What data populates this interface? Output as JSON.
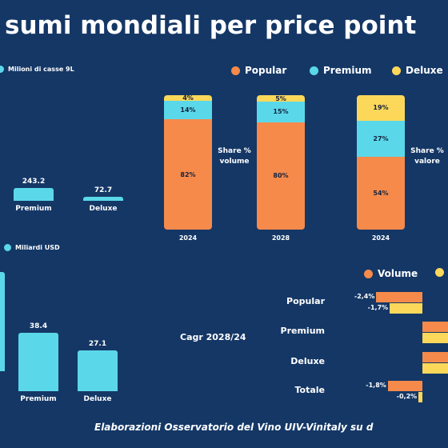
{
  "title": "sumi mondiali per price point",
  "footer": "Elaborazioni Osservatorio del Vino UIV-Vinitaly su d",
  "colors": {
    "background": "#143766",
    "popular": "#f58a4b",
    "premium": "#5ad8ea",
    "deluxe": "#fbd85a",
    "volume": "#f58a4b",
    "valore": "#fbd85a"
  },
  "chart_data": [
    {
      "type": "bar",
      "ylabel": "Milioni di casse 9L",
      "categories": [
        "Premium",
        "Deluxe"
      ],
      "values": [
        243.2,
        72.7
      ],
      "value_labels": [
        "243.2",
        "72.7"
      ]
    },
    {
      "type": "bar",
      "ylabel": "Miliardi USD",
      "categories": [
        "Premium",
        "Deluxe"
      ],
      "values": [
        38.4,
        27.1
      ],
      "value_labels": [
        "38.4",
        "27.1"
      ]
    },
    {
      "type": "bar",
      "stacked": true,
      "percent": true,
      "legend": [
        "Popular",
        "Premium",
        "Deluxe"
      ],
      "groups": [
        {
          "year": "2024",
          "label": "Share % volume",
          "label_lines": [
            "Share %",
            "volume"
          ],
          "segments": [
            82,
            14,
            4
          ],
          "seg_labels": [
            "82%",
            "14%",
            "4%"
          ]
        },
        {
          "year": "2028",
          "label": "",
          "label_lines": [],
          "segments": [
            80,
            15,
            5
          ],
          "seg_labels": [
            "80%",
            "15%",
            "5%"
          ]
        },
        {
          "year": "2024",
          "label": "Share % valore",
          "label_lines": [
            "Share %",
            "valore"
          ],
          "segments": [
            54,
            27,
            19
          ],
          "seg_labels": [
            "54%",
            "27%",
            "19%"
          ]
        }
      ]
    },
    {
      "type": "bar",
      "orientation": "horizontal",
      "title": "Cagr 2028/24",
      "legend": [
        "Volume"
      ],
      "categories": [
        "Popular",
        "Premium",
        "Deluxe",
        "Totale"
      ],
      "series": [
        {
          "name": "Volume",
          "values": [
            -2.4,
            null,
            null,
            -1.8
          ],
          "labels": [
            "-2,4%",
            "",
            "",
            "-1,8%"
          ]
        },
        {
          "name": "",
          "values": [
            -1.7,
            null,
            null,
            -0.2
          ],
          "labels": [
            "-1,7%",
            "",
            "",
            "-0,2%"
          ]
        }
      ]
    }
  ]
}
